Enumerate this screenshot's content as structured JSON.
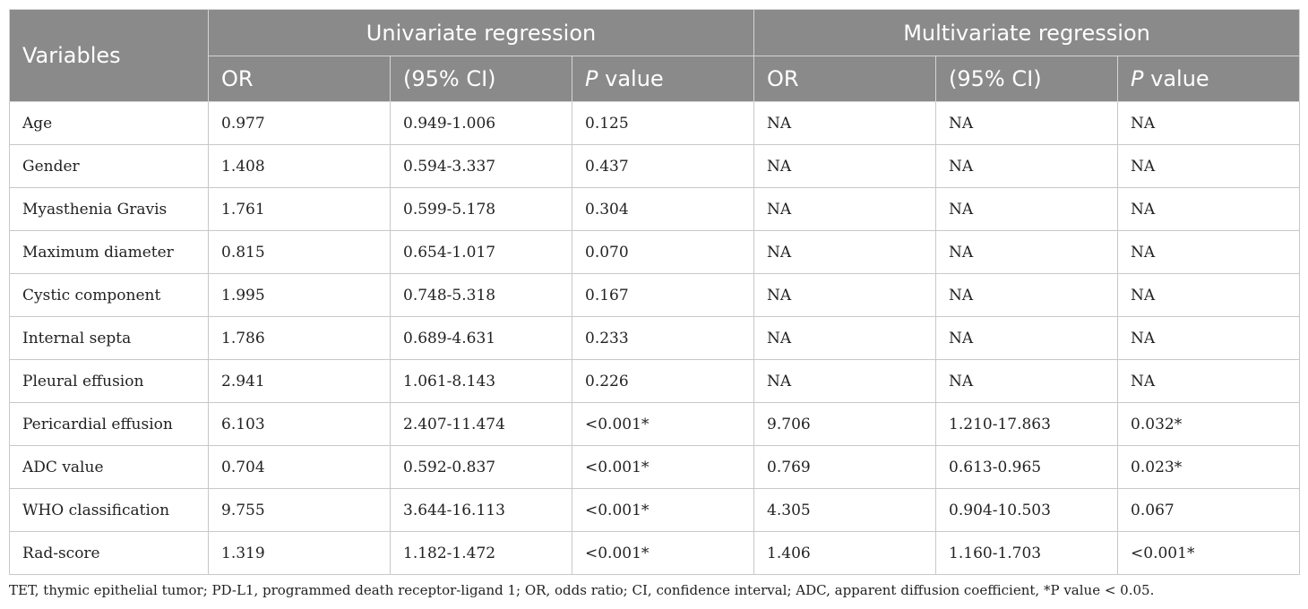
{
  "header": {
    "variables": "Variables",
    "univariate": "Univariate regression",
    "multivariate": "Multivariate regression",
    "or": "OR",
    "ci": "(95% CI)",
    "p_italic": "P",
    "p_rest": " value"
  },
  "rows": [
    {
      "variable": "Age",
      "u_or": "0.977",
      "u_ci": "0.949-1.006",
      "u_p": "0.125",
      "m_or": "NA",
      "m_ci": "NA",
      "m_p": "NA"
    },
    {
      "variable": "Gender",
      "u_or": "1.408",
      "u_ci": "0.594-3.337",
      "u_p": "0.437",
      "m_or": "NA",
      "m_ci": "NA",
      "m_p": "NA"
    },
    {
      "variable": "Myasthenia Gravis",
      "u_or": "1.761",
      "u_ci": "0.599-5.178",
      "u_p": "0.304",
      "m_or": "NA",
      "m_ci": "NA",
      "m_p": "NA"
    },
    {
      "variable": "Maximum diameter",
      "u_or": "0.815",
      "u_ci": "0.654-1.017",
      "u_p": "0.070",
      "m_or": "NA",
      "m_ci": "NA",
      "m_p": "NA"
    },
    {
      "variable": "Cystic component",
      "u_or": "1.995",
      "u_ci": "0.748-5.318",
      "u_p": "0.167",
      "m_or": "NA",
      "m_ci": "NA",
      "m_p": "NA"
    },
    {
      "variable": "Internal septa",
      "u_or": "1.786",
      "u_ci": "0.689-4.631",
      "u_p": "0.233",
      "m_or": "NA",
      "m_ci": "NA",
      "m_p": "NA"
    },
    {
      "variable": "Pleural effusion",
      "u_or": "2.941",
      "u_ci": "1.061-8.143",
      "u_p": "0.226",
      "m_or": "NA",
      "m_ci": "NA",
      "m_p": "NA"
    },
    {
      "variable": "Pericardial effusion",
      "u_or": "6.103",
      "u_ci": "2.407-11.474",
      "u_p": "<0.001*",
      "m_or": "9.706",
      "m_ci": "1.210-17.863",
      "m_p": "0.032*"
    },
    {
      "variable": "ADC value",
      "u_or": "0.704",
      "u_ci": "0.592-0.837",
      "u_p": "<0.001*",
      "m_or": "0.769",
      "m_ci": "0.613-0.965",
      "m_p": "0.023*"
    },
    {
      "variable": "WHO classification",
      "u_or": "9.755",
      "u_ci": "3.644-16.113",
      "u_p": "<0.001*",
      "m_or": "4.305",
      "m_ci": "0.904-10.503",
      "m_p": "0.067"
    },
    {
      "variable": "Rad-score",
      "u_or": "1.319",
      "u_ci": "1.182-1.472",
      "u_p": "<0.001*",
      "m_or": "1.406",
      "m_ci": "1.160-1.703",
      "m_p": "<0.001*"
    }
  ],
  "footnote": "TET, thymic epithelial tumor; PD-L1, programmed death receptor-ligand 1; OR, odds ratio; CI, confidence interval; ADC, apparent diffusion coefficient, *P value < 0.05."
}
